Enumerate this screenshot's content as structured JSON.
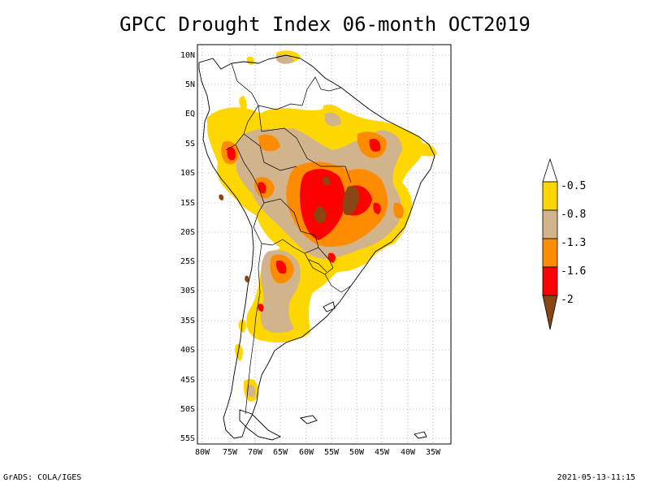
{
  "title": "GPCC Drought Index 06-month OCT2019",
  "footer": {
    "left": "GrADS: COLA/IGES",
    "right": "2021-05-13-11:15"
  },
  "map": {
    "lat_labels": [
      "10N",
      "5N",
      "EQ",
      "5S",
      "10S",
      "15S",
      "20S",
      "25S",
      "30S",
      "35S",
      "40S",
      "45S",
      "50S",
      "55S"
    ],
    "lon_labels": [
      "80W",
      "75W",
      "70W",
      "65W",
      "60W",
      "55W",
      "50W",
      "45W",
      "40W",
      "35W"
    ],
    "extent": {
      "lon": [
        -81,
        -30
      ],
      "lat": [
        -56,
        11
      ]
    }
  },
  "legend": {
    "labels": [
      "-0.5",
      "-0.8",
      "-1.3",
      "-1.6",
      "-2"
    ],
    "colors": [
      "#ffffff",
      "#ffd700",
      "#d2b48c",
      "#ff8c00",
      "#ff0000",
      "#8b4513"
    ]
  },
  "colors": {
    "yellow": "#ffd700",
    "tan": "#d2b48c",
    "orange": "#ff8c00",
    "red": "#ff0000",
    "brown": "#8b4513"
  }
}
